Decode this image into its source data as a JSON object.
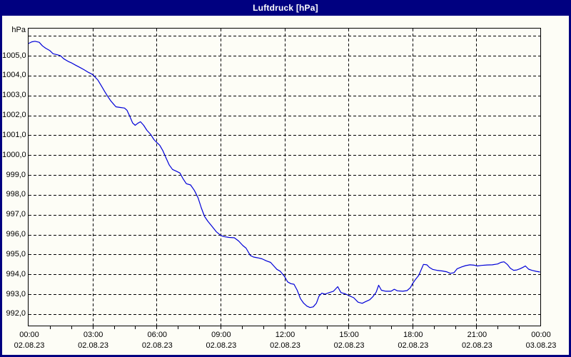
{
  "window": {
    "title": "Luftdruck [hPa]"
  },
  "colors": {
    "frame_navy": "#000080",
    "title_text": "#ffffff",
    "background": "#fdfdf6",
    "gridline": "#000000",
    "line_blue": "#0000d8",
    "label_text": "#000000"
  },
  "chart_data": {
    "type": "line",
    "title": "Luftdruck [hPa]",
    "ylabel": "hPa",
    "xlabel": "",
    "grid": true,
    "legend": "none",
    "ylim": [
      991.4,
      1006.4
    ],
    "xlim_hours": [
      0,
      24
    ],
    "y_axis": {
      "unit": "hPa",
      "plot_top_value": 1006.37,
      "plot_bottom_value": 991.42,
      "grid_min": 992,
      "grid_max": 1006,
      "grid_step": 1,
      "tick_labels": [
        {
          "value": 1005,
          "label": "1005,0"
        },
        {
          "value": 1004,
          "label": "1004,0"
        },
        {
          "value": 1003,
          "label": "1003,0"
        },
        {
          "value": 1002,
          "label": "1002,0"
        },
        {
          "value": 1001,
          "label": "1001,0"
        },
        {
          "value": 1000,
          "label": "1000,0"
        },
        {
          "value": 999,
          "label": "999,0"
        },
        {
          "value": 998,
          "label": "998,0"
        },
        {
          "value": 997,
          "label": "997,0"
        },
        {
          "value": 996,
          "label": "996,0"
        },
        {
          "value": 995,
          "label": "995,0"
        },
        {
          "value": 994,
          "label": "994,0"
        },
        {
          "value": 993,
          "label": "993,0"
        },
        {
          "value": 992,
          "label": "992,0"
        }
      ]
    },
    "x_axis": {
      "grid_step_hours": 3,
      "minor_tick_hours": 1,
      "tick_labels": [
        {
          "hour": 0,
          "time": "00:00",
          "date": "02.08.23"
        },
        {
          "hour": 3,
          "time": "03:00",
          "date": "02.08.23"
        },
        {
          "hour": 6,
          "time": "06:00",
          "date": "02.08.23"
        },
        {
          "hour": 9,
          "time": "09:00",
          "date": "02.08.23"
        },
        {
          "hour": 12,
          "time": "12:00",
          "date": "02.08.23"
        },
        {
          "hour": 15,
          "time": "15:00",
          "date": "02.08.23"
        },
        {
          "hour": 18,
          "time": "18:00",
          "date": "02.08.23"
        },
        {
          "hour": 21,
          "time": "21:00",
          "date": "02.08.23"
        },
        {
          "hour": 24,
          "time": "00:00",
          "date": "03.08.23"
        }
      ]
    },
    "series": [
      {
        "name": "Luftdruck",
        "color": "#0000d8",
        "points": [
          [
            0.0,
            1005.62
          ],
          [
            0.15,
            1005.7
          ],
          [
            0.3,
            1005.73
          ],
          [
            0.5,
            1005.68
          ],
          [
            0.65,
            1005.5
          ],
          [
            0.8,
            1005.38
          ],
          [
            1.0,
            1005.26
          ],
          [
            1.15,
            1005.1
          ],
          [
            1.35,
            1005.05
          ],
          [
            1.5,
            1005.0
          ],
          [
            1.65,
            1004.85
          ],
          [
            1.85,
            1004.72
          ],
          [
            2.0,
            1004.65
          ],
          [
            2.2,
            1004.53
          ],
          [
            2.4,
            1004.42
          ],
          [
            2.6,
            1004.3
          ],
          [
            2.8,
            1004.17
          ],
          [
            3.0,
            1004.06
          ],
          [
            3.1,
            1003.95
          ],
          [
            3.25,
            1003.78
          ],
          [
            3.45,
            1003.42
          ],
          [
            3.6,
            1003.15
          ],
          [
            3.7,
            1002.98
          ],
          [
            3.85,
            1002.74
          ],
          [
            4.0,
            1002.55
          ],
          [
            4.1,
            1002.43
          ],
          [
            4.3,
            1002.4
          ],
          [
            4.5,
            1002.37
          ],
          [
            4.62,
            1002.25
          ],
          [
            4.75,
            1001.95
          ],
          [
            4.88,
            1001.62
          ],
          [
            5.0,
            1001.5
          ],
          [
            5.12,
            1001.6
          ],
          [
            5.25,
            1001.68
          ],
          [
            5.4,
            1001.5
          ],
          [
            5.55,
            1001.25
          ],
          [
            5.72,
            1001.05
          ],
          [
            5.88,
            1000.78
          ],
          [
            6.0,
            1000.65
          ],
          [
            6.15,
            1000.5
          ],
          [
            6.3,
            1000.22
          ],
          [
            6.45,
            999.85
          ],
          [
            6.6,
            999.5
          ],
          [
            6.75,
            999.28
          ],
          [
            6.95,
            999.18
          ],
          [
            7.1,
            999.1
          ],
          [
            7.25,
            998.8
          ],
          [
            7.4,
            998.56
          ],
          [
            7.6,
            998.5
          ],
          [
            7.78,
            998.22
          ],
          [
            7.95,
            997.85
          ],
          [
            8.1,
            997.35
          ],
          [
            8.25,
            996.92
          ],
          [
            8.4,
            996.68
          ],
          [
            8.6,
            996.42
          ],
          [
            8.8,
            996.15
          ],
          [
            9.0,
            995.97
          ],
          [
            9.15,
            995.9
          ],
          [
            9.4,
            995.86
          ],
          [
            9.65,
            995.84
          ],
          [
            9.85,
            995.68
          ],
          [
            10.05,
            995.45
          ],
          [
            10.2,
            995.32
          ],
          [
            10.4,
            994.95
          ],
          [
            10.55,
            994.87
          ],
          [
            10.75,
            994.83
          ],
          [
            10.95,
            994.78
          ],
          [
            11.15,
            994.68
          ],
          [
            11.35,
            994.6
          ],
          [
            11.5,
            994.42
          ],
          [
            11.65,
            994.25
          ],
          [
            11.8,
            994.16
          ],
          [
            12.0,
            993.9
          ],
          [
            12.15,
            993.62
          ],
          [
            12.3,
            993.53
          ],
          [
            12.45,
            993.5
          ],
          [
            12.6,
            993.2
          ],
          [
            12.75,
            992.78
          ],
          [
            12.9,
            992.55
          ],
          [
            13.05,
            992.4
          ],
          [
            13.2,
            992.33
          ],
          [
            13.35,
            992.36
          ],
          [
            13.5,
            992.55
          ],
          [
            13.62,
            992.9
          ],
          [
            13.75,
            993.05
          ],
          [
            13.9,
            993.0
          ],
          [
            14.1,
            993.08
          ],
          [
            14.3,
            993.15
          ],
          [
            14.5,
            993.38
          ],
          [
            14.65,
            993.08
          ],
          [
            14.85,
            993.02
          ],
          [
            15.05,
            992.92
          ],
          [
            15.25,
            992.82
          ],
          [
            15.45,
            992.6
          ],
          [
            15.65,
            992.54
          ],
          [
            15.8,
            992.62
          ],
          [
            16.0,
            992.72
          ],
          [
            16.15,
            992.88
          ],
          [
            16.3,
            993.1
          ],
          [
            16.42,
            993.45
          ],
          [
            16.55,
            993.2
          ],
          [
            16.75,
            993.15
          ],
          [
            17.0,
            993.15
          ],
          [
            17.15,
            993.25
          ],
          [
            17.3,
            993.17
          ],
          [
            17.55,
            993.15
          ],
          [
            17.75,
            993.18
          ],
          [
            17.9,
            993.32
          ],
          [
            18.0,
            993.52
          ],
          [
            18.15,
            993.75
          ],
          [
            18.3,
            993.95
          ],
          [
            18.42,
            994.25
          ],
          [
            18.52,
            994.5
          ],
          [
            18.68,
            994.48
          ],
          [
            18.8,
            994.35
          ],
          [
            18.95,
            994.25
          ],
          [
            19.15,
            994.2
          ],
          [
            19.4,
            994.17
          ],
          [
            19.6,
            994.13
          ],
          [
            19.78,
            994.05
          ],
          [
            19.95,
            994.08
          ],
          [
            20.1,
            994.28
          ],
          [
            20.3,
            994.37
          ],
          [
            20.5,
            994.44
          ],
          [
            20.7,
            994.48
          ],
          [
            20.9,
            994.46
          ],
          [
            21.05,
            994.42
          ],
          [
            21.25,
            994.45
          ],
          [
            21.5,
            994.47
          ],
          [
            21.75,
            994.48
          ],
          [
            22.0,
            994.52
          ],
          [
            22.15,
            994.6
          ],
          [
            22.3,
            994.63
          ],
          [
            22.45,
            994.5
          ],
          [
            22.6,
            994.3
          ],
          [
            22.75,
            994.2
          ],
          [
            22.9,
            994.22
          ],
          [
            23.05,
            994.28
          ],
          [
            23.2,
            994.36
          ],
          [
            23.3,
            994.42
          ],
          [
            23.45,
            994.26
          ],
          [
            23.6,
            994.2
          ],
          [
            23.8,
            994.15
          ],
          [
            23.97,
            994.12
          ]
        ]
      }
    ]
  }
}
